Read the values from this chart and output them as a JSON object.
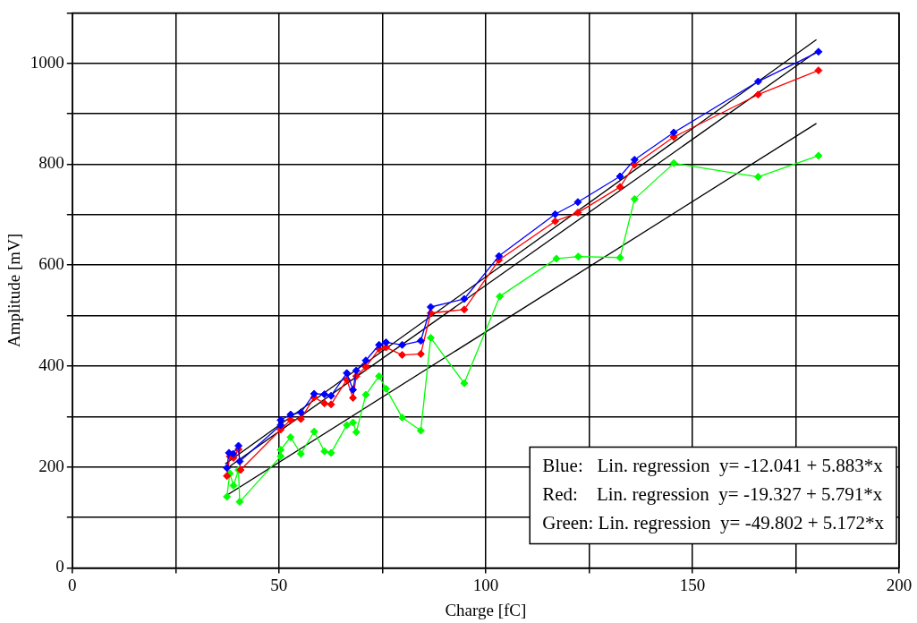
{
  "chart_data": {
    "type": "line",
    "xlabel": "Charge [fC]",
    "ylabel": "Amplitude [mV]",
    "xlim": [
      0,
      200
    ],
    "xticks": [
      0,
      {
        "value": 25,
        "label": null
      },
      50,
      {
        "value": 75,
        "label": null
      },
      100,
      {
        "value": 125,
        "label": null
      },
      150,
      {
        "value": 175,
        "label": null
      },
      200
    ],
    "ylim": [
      0,
      1100
    ],
    "yticks": [
      0,
      {
        "value": 100,
        "label": null
      },
      200,
      {
        "value": 300,
        "label": null
      },
      400,
      {
        "value": 500,
        "label": null
      },
      600,
      {
        "value": 700,
        "label": null
      },
      800,
      {
        "value": 900,
        "label": null
      },
      1000,
      {
        "value": 1100,
        "label": null
      }
    ],
    "grid": true,
    "legend": false,
    "marker": "diamond",
    "line_style": "solid",
    "annotations": [
      "Blue:   Lin. regression  y= -12.041 + 5.883*x",
      "Red:    Lin. regression  y= -19.327 + 5.791*x",
      "Green: Lin. regression  y= -49.802 + 5.172*x"
    ],
    "series": [
      {
        "color": "#0000ff",
        "x": [
          37.4,
          37.9,
          38.9,
          40.2,
          40.5,
          50.4,
          50.4,
          52.8,
          55.3,
          58.5,
          61,
          62.6,
          66.4,
          67.9,
          68.7,
          71,
          74.2,
          75.9,
          79.8,
          84.3,
          86.7,
          94.8,
          103.2,
          116.8,
          122.3,
          132.5,
          136,
          145.5,
          165.9,
          180.5
        ],
        "values": [
          198,
          228,
          226,
          242,
          211,
          283,
          293,
          304,
          308,
          345,
          344,
          341,
          386,
          353,
          391,
          411,
          442,
          447,
          442,
          450,
          517,
          533,
          618,
          701,
          725,
          776,
          809,
          863,
          964,
          1023
        ]
      },
      {
        "color": "#ff0000",
        "x": [
          37.4,
          38.1,
          39,
          40.2,
          40.7,
          50.4,
          52.8,
          55.3,
          58.5,
          61,
          62.6,
          66.4,
          67.9,
          68.7,
          71,
          74.2,
          75.9,
          79.8,
          84.3,
          86.7,
          94.8,
          103.2,
          116.8,
          122.3,
          132.5,
          136,
          145.5,
          165.9,
          180.5
        ],
        "values": [
          182,
          221,
          218,
          235,
          194,
          274,
          293,
          295,
          338,
          326,
          324,
          373,
          337,
          380,
          398,
          434,
          437,
          422,
          424,
          505,
          512,
          610,
          687,
          704,
          755,
          799,
          854,
          938,
          986
        ]
      },
      {
        "color": "#00ff00",
        "x": [
          37.4,
          38.1,
          39,
          40.2,
          40.5,
          50.4,
          50.4,
          52.8,
          55.3,
          58.5,
          61,
          62.6,
          66.4,
          67.9,
          68.7,
          71,
          74.2,
          75.9,
          79.8,
          84.3,
          86.7,
          94.8,
          103.4,
          117.1,
          122.4,
          132.5,
          136,
          145.5,
          165.9,
          180.5
        ],
        "values": [
          141,
          187,
          163,
          194,
          131,
          221,
          234,
          259,
          226,
          270,
          231,
          228,
          283,
          288,
          269,
          343,
          380,
          355,
          298,
          272,
          456,
          366,
          538,
          613,
          617,
          615,
          731,
          802,
          775,
          817
        ]
      },
      {
        "type": "line",
        "color": "#000000",
        "marker": "none",
        "x": [
          37,
          180
        ],
        "values": [
          206,
          1047
        ]
      },
      {
        "type": "line",
        "color": "#000000",
        "marker": "none",
        "x": [
          37,
          180
        ],
        "values": [
          195,
          1023
        ]
      },
      {
        "type": "line",
        "color": "#000000",
        "marker": "none",
        "x": [
          37,
          180
        ],
        "values": [
          142,
          881
        ]
      }
    ]
  }
}
